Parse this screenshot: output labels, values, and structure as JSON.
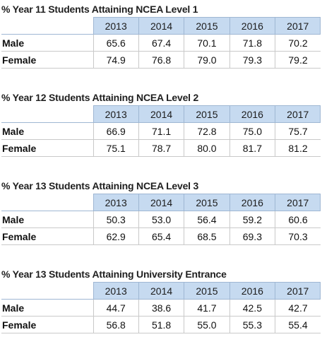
{
  "tables": [
    {
      "title": "% Year 11 Students Attaining NCEA Level 1",
      "years": [
        "2013",
        "2014",
        "2015",
        "2016",
        "2017"
      ],
      "rows": [
        {
          "label": "Male",
          "values": [
            "65.6",
            "67.4",
            "70.1",
            "71.8",
            "70.2"
          ]
        },
        {
          "label": "Female",
          "values": [
            "74.9",
            "76.8",
            "79.0",
            "79.3",
            "79.2"
          ]
        }
      ]
    },
    {
      "title": "% Year 12 Students Attaining NCEA Level 2",
      "years": [
        "2013",
        "2014",
        "2015",
        "2016",
        "2017"
      ],
      "rows": [
        {
          "label": "Male",
          "values": [
            "66.9",
            "71.1",
            "72.8",
            "75.0",
            "75.7"
          ]
        },
        {
          "label": "Female",
          "values": [
            "75.1",
            "78.7",
            "80.0",
            "81.7",
            "81.2"
          ]
        }
      ]
    },
    {
      "title": "% Year 13 Students Attaining NCEA Level 3",
      "years": [
        "2013",
        "2014",
        "2015",
        "2016",
        "2017"
      ],
      "rows": [
        {
          "label": "Male",
          "values": [
            "50.3",
            "53.0",
            "56.4",
            "59.2",
            "60.6"
          ]
        },
        {
          "label": "Female",
          "values": [
            "62.9",
            "65.4",
            "68.5",
            "69.3",
            "70.3"
          ]
        }
      ]
    },
    {
      "title": "% Year 13 Students Attaining University Entrance",
      "years": [
        "2013",
        "2014",
        "2015",
        "2016",
        "2017"
      ],
      "rows": [
        {
          "label": "Male",
          "values": [
            "44.7",
            "38.6",
            "41.7",
            "42.5",
            "42.7"
          ]
        },
        {
          "label": "Female",
          "values": [
            "56.8",
            "51.8",
            "55.0",
            "55.3",
            "55.4"
          ]
        }
      ]
    }
  ],
  "colors": {
    "header_fill": "#c6daf0",
    "header_border": "#9fb7d3",
    "grid_line": "#c9c9c9"
  }
}
